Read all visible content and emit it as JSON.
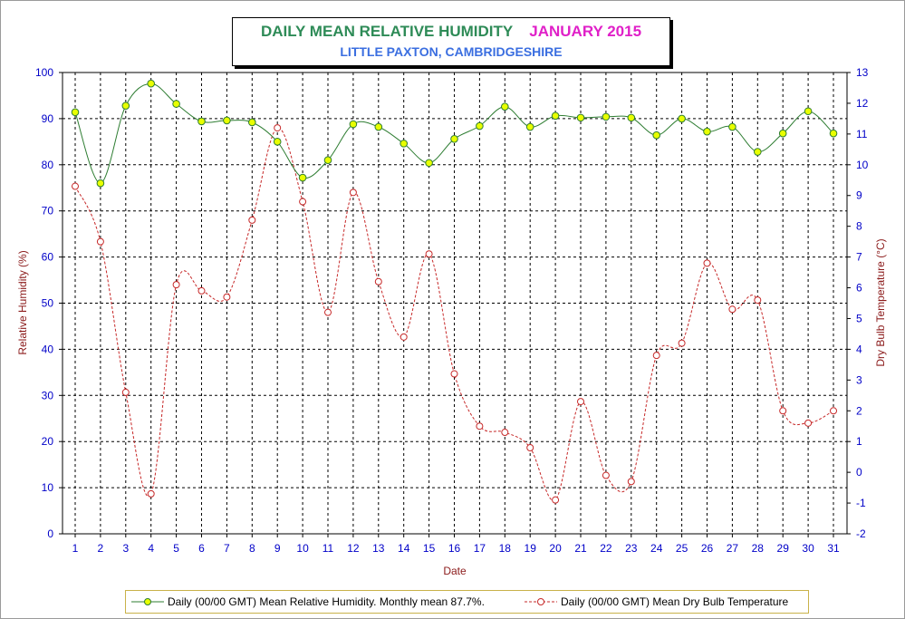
{
  "title": {
    "main": "DAILY MEAN RELATIVE HUMIDITY",
    "date": "JANUARY 2015",
    "subtitle": "LITTLE PAXTON, CAMBRIDGESHIRE"
  },
  "colors": {
    "humidity_line": "#2e7d32",
    "humidity_marker": "#e8ff00",
    "temperature_line": "#c62828",
    "axis_text": "#0000c8",
    "axis_label": "#8b1a1a",
    "legend_border": "#c9b24a"
  },
  "chart_data": {
    "type": "line",
    "xlabel": "Date",
    "ylabel_left": "Relative Humidity (%)",
    "ylabel_right": "Dry Bulb Temperature (°C)",
    "x": [
      1,
      2,
      3,
      4,
      5,
      6,
      7,
      8,
      9,
      10,
      11,
      12,
      13,
      14,
      15,
      16,
      17,
      18,
      19,
      20,
      21,
      22,
      23,
      24,
      25,
      26,
      27,
      28,
      29,
      30,
      31
    ],
    "x_ticks": [
      "1",
      "2",
      "3",
      "4",
      "5",
      "6",
      "7",
      "8",
      "9",
      "10",
      "11",
      "12",
      "13",
      "14",
      "15",
      "16",
      "17",
      "18",
      "19",
      "20",
      "21",
      "22",
      "23",
      "24",
      "25",
      "26",
      "27",
      "28",
      "29",
      "30",
      "31"
    ],
    "ylim_left": [
      0,
      100
    ],
    "ylim_right": [
      -2,
      13
    ],
    "yticks_left": [
      "0",
      "10",
      "20",
      "30",
      "40",
      "50",
      "60",
      "70",
      "80",
      "90",
      "100"
    ],
    "yticks_right": [
      "-2",
      "-1",
      "0",
      "1",
      "2",
      "3",
      "4",
      "5",
      "6",
      "7",
      "8",
      "9",
      "10",
      "11",
      "12",
      "13"
    ],
    "grid": true,
    "legend_position": "bottom",
    "series": [
      {
        "name": "Daily (00/00 GMT) Mean Relative Humidity. Monthly mean 87.7%.",
        "axis": "left",
        "style": "solid",
        "values": [
          91.4,
          76.0,
          92.8,
          97.6,
          93.2,
          89.4,
          89.6,
          89.2,
          85.0,
          77.2,
          81.0,
          88.8,
          88.2,
          84.6,
          80.4,
          85.6,
          88.4,
          92.6,
          88.2,
          90.6,
          90.2,
          90.4,
          90.2,
          86.4,
          90.0,
          87.2,
          88.2,
          82.8,
          86.8,
          91.6,
          86.8
        ]
      },
      {
        "name": "Daily (00/00 GMT) Mean Dry Bulb Temperature",
        "axis": "right",
        "style": "dashed",
        "values": [
          9.3,
          7.5,
          2.6,
          -0.7,
          6.1,
          5.9,
          5.7,
          8.2,
          11.2,
          8.8,
          5.2,
          9.1,
          6.2,
          4.4,
          7.1,
          3.2,
          1.5,
          1.3,
          0.8,
          -0.9,
          2.3,
          -0.1,
          -0.3,
          3.8,
          4.2,
          6.8,
          5.3,
          5.6,
          2.0,
          1.6,
          2.0
        ]
      }
    ]
  }
}
